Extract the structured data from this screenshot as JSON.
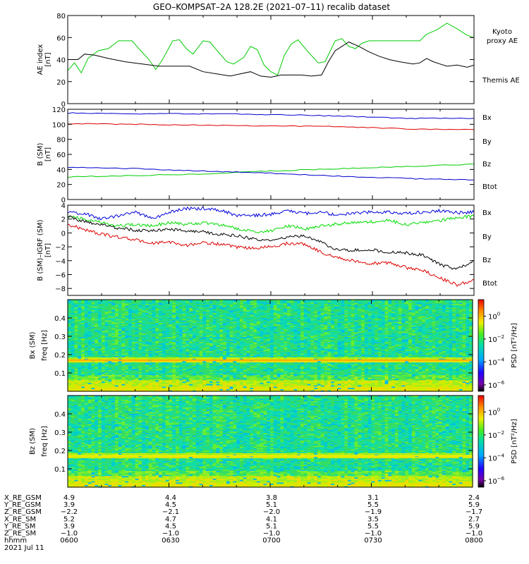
{
  "title": "GEO–KOMPSAT–2A 128.2E (2021–07–11) recalib dataset",
  "chart_data": [
    {
      "type": "line",
      "panel": "ae",
      "ylabel": [
        "AE index",
        "[nT]"
      ],
      "ylim": [
        0,
        80
      ],
      "yticks": [
        0,
        20,
        40,
        60,
        80
      ],
      "xlim": [
        0,
        120
      ],
      "series": [
        {
          "name": "Kyoto proxy AE",
          "label_lines": [
            "Kyoto",
            "proxy AE"
          ],
          "color": "#00cc00",
          "points": [
            [
              0,
              30
            ],
            [
              2,
              37
            ],
            [
              4,
              28
            ],
            [
              6,
              41
            ],
            [
              9,
              48
            ],
            [
              12,
              50
            ],
            [
              15,
              57
            ],
            [
              19,
              57
            ],
            [
              21,
              50
            ],
            [
              24,
              40
            ],
            [
              26,
              31
            ],
            [
              28,
              40
            ],
            [
              31,
              57
            ],
            [
              33,
              58
            ],
            [
              35,
              50
            ],
            [
              37,
              45
            ],
            [
              40,
              57
            ],
            [
              42,
              56
            ],
            [
              45,
              45
            ],
            [
              47,
              38
            ],
            [
              49,
              36
            ],
            [
              52,
              42
            ],
            [
              54,
              52
            ],
            [
              56,
              49
            ],
            [
              58,
              35
            ],
            [
              60,
              29
            ],
            [
              62,
              26
            ],
            [
              64,
              44
            ],
            [
              66,
              54
            ],
            [
              68,
              58
            ],
            [
              71,
              47
            ],
            [
              74,
              37
            ],
            [
              76,
              38
            ],
            [
              79,
              57
            ],
            [
              81,
              59
            ],
            [
              83,
              52
            ],
            [
              85,
              50
            ],
            [
              87,
              55
            ],
            [
              89,
              57
            ],
            [
              92,
              57
            ],
            [
              94,
              57
            ],
            [
              100,
              57
            ],
            [
              104,
              57
            ],
            [
              106,
              63
            ],
            [
              109,
              67
            ],
            [
              112,
              73
            ],
            [
              115,
              68
            ],
            [
              118,
              62
            ],
            [
              120,
              60
            ]
          ]
        },
        {
          "name": "Themis AE",
          "label_lines": [
            "Themis AE"
          ],
          "color": "#000000",
          "points": [
            [
              0,
              40
            ],
            [
              3,
              40
            ],
            [
              5,
              45
            ],
            [
              8,
              44
            ],
            [
              12,
              41
            ],
            [
              17,
              38
            ],
            [
              22,
              36
            ],
            [
              27,
              34
            ],
            [
              32,
              34
            ],
            [
              36,
              34
            ],
            [
              40,
              29
            ],
            [
              44,
              27
            ],
            [
              48,
              25
            ],
            [
              51,
              27
            ],
            [
              54,
              29
            ],
            [
              57,
              25
            ],
            [
              60,
              24
            ],
            [
              63,
              26
            ],
            [
              66,
              26
            ],
            [
              69,
              26
            ],
            [
              72,
              25
            ],
            [
              75,
              26
            ],
            [
              77,
              38
            ],
            [
              79,
              48
            ],
            [
              81,
              52
            ],
            [
              83,
              56
            ],
            [
              86,
              52
            ],
            [
              89,
              47
            ],
            [
              92,
              43
            ],
            [
              95,
              40
            ],
            [
              98,
              38
            ],
            [
              102,
              36
            ],
            [
              104,
              37
            ],
            [
              106,
              41
            ],
            [
              108,
              38
            ],
            [
              110,
              36
            ],
            [
              112,
              34
            ],
            [
              115,
              35
            ],
            [
              118,
              33
            ],
            [
              120,
              35
            ]
          ]
        }
      ]
    },
    {
      "type": "line",
      "panel": "bsm",
      "ylabel": [
        "B (SM)",
        "[nT]"
      ],
      "ylim": [
        0,
        120
      ],
      "yticks": [
        0,
        20,
        40,
        60,
        80,
        100,
        120
      ],
      "xlim": [
        0,
        120
      ],
      "series": [
        {
          "name": "Bx",
          "color": "#0000cc",
          "points": [
            [
              0,
              115
            ],
            [
              20,
              114
            ],
            [
              40,
              114
            ],
            [
              60,
              113
            ],
            [
              80,
              111
            ],
            [
              100,
              108
            ],
            [
              120,
              108
            ]
          ]
        },
        {
          "name": "By",
          "color": "#00cc00",
          "points": [
            [
              0,
              30
            ],
            [
              20,
              32
            ],
            [
              40,
              34
            ],
            [
              60,
              38
            ],
            [
              80,
              41
            ],
            [
              100,
              44
            ],
            [
              120,
              47
            ]
          ]
        },
        {
          "name": "Bz",
          "color": "#dd0000",
          "points": [
            [
              0,
              101
            ],
            [
              20,
              100
            ],
            [
              40,
              99
            ],
            [
              60,
              98
            ],
            [
              80,
              97
            ],
            [
              100,
              94
            ],
            [
              120,
              93
            ]
          ]
        },
        {
          "name": "Btot",
          "color": "#0000cc",
          "points": [
            [
              0,
              43
            ],
            [
              20,
              41
            ],
            [
              40,
              38
            ],
            [
              60,
              35
            ],
            [
              80,
              31
            ],
            [
              100,
              28
            ],
            [
              120,
              26
            ]
          ]
        }
      ]
    },
    {
      "type": "line",
      "panel": "bigrf",
      "ylabel": [
        "B (SM)–IGRF (SM)",
        "[nT]"
      ],
      "ylim": [
        -9,
        4
      ],
      "yticks": [
        -8,
        -6,
        -4,
        -2,
        0,
        2,
        4
      ],
      "xlim": [
        0,
        120
      ],
      "series": [
        {
          "name": "Bx",
          "color": "#0000dd",
          "points": [
            [
              0,
              2.9
            ],
            [
              5,
              2.8
            ],
            [
              10,
              2.0
            ],
            [
              15,
              2.5
            ],
            [
              20,
              3.0
            ],
            [
              25,
              2.0
            ],
            [
              30,
              3.0
            ],
            [
              35,
              3.5
            ],
            [
              40,
              3.5
            ],
            [
              45,
              3.3
            ],
            [
              50,
              2.5
            ],
            [
              55,
              2.5
            ],
            [
              60,
              2.7
            ],
            [
              65,
              3.2
            ],
            [
              70,
              2.8
            ],
            [
              75,
              3.0
            ],
            [
              80,
              2.5
            ],
            [
              85,
              2.9
            ],
            [
              90,
              3.0
            ],
            [
              95,
              3.0
            ],
            [
              100,
              2.8
            ],
            [
              105,
              3.0
            ],
            [
              110,
              3.2
            ],
            [
              115,
              2.9
            ],
            [
              120,
              3.0
            ]
          ]
        },
        {
          "name": "By",
          "color": "#00dd00",
          "points": [
            [
              0,
              2.5
            ],
            [
              5,
              2.0
            ],
            [
              10,
              1.5
            ],
            [
              15,
              1.0
            ],
            [
              20,
              1.2
            ],
            [
              25,
              1.0
            ],
            [
              30,
              1.5
            ],
            [
              35,
              1.2
            ],
            [
              40,
              1.4
            ],
            [
              45,
              1.2
            ],
            [
              50,
              0.6
            ],
            [
              55,
              0.2
            ],
            [
              60,
              0.3
            ],
            [
              65,
              1.0
            ],
            [
              70,
              0.6
            ],
            [
              75,
              1.0
            ],
            [
              80,
              1.3
            ],
            [
              85,
              1.5
            ],
            [
              90,
              1.6
            ],
            [
              95,
              1.8
            ],
            [
              100,
              1.2
            ],
            [
              105,
              1.5
            ],
            [
              110,
              1.8
            ],
            [
              115,
              2.2
            ],
            [
              120,
              2.4
            ]
          ]
        },
        {
          "name": "Bz",
          "color": "#dd0000",
          "points": [
            [
              0,
              1.2
            ],
            [
              5,
              0.5
            ],
            [
              10,
              -0.2
            ],
            [
              15,
              -0.6
            ],
            [
              20,
              -1.0
            ],
            [
              25,
              -1.5
            ],
            [
              30,
              -1.3
            ],
            [
              35,
              -1.8
            ],
            [
              40,
              -1.4
            ],
            [
              45,
              -1.6
            ],
            [
              50,
              -2.1
            ],
            [
              55,
              -2.2
            ],
            [
              60,
              -2.0
            ],
            [
              65,
              -1.5
            ],
            [
              70,
              -1.6
            ],
            [
              75,
              -2.8
            ],
            [
              80,
              -3.6
            ],
            [
              85,
              -4.1
            ],
            [
              90,
              -4.4
            ],
            [
              95,
              -4.3
            ],
            [
              100,
              -5.0
            ],
            [
              105,
              -5.4
            ],
            [
              110,
              -6.5
            ],
            [
              115,
              -7.5
            ],
            [
              120,
              -6.8
            ]
          ]
        },
        {
          "name": "Btot",
          "color": "#000000",
          "points": [
            [
              0,
              2.4
            ],
            [
              5,
              1.6
            ],
            [
              10,
              1.2
            ],
            [
              15,
              0.7
            ],
            [
              20,
              0.4
            ],
            [
              25,
              0.3
            ],
            [
              30,
              0.6
            ],
            [
              35,
              0.2
            ],
            [
              40,
              0.2
            ],
            [
              45,
              -0.2
            ],
            [
              50,
              -0.4
            ],
            [
              55,
              -0.9
            ],
            [
              60,
              -1.1
            ],
            [
              65,
              -0.6
            ],
            [
              70,
              -0.4
            ],
            [
              75,
              -1.4
            ],
            [
              80,
              -2.5
            ],
            [
              85,
              -2.5
            ],
            [
              90,
              -2.4
            ],
            [
              95,
              -2.8
            ],
            [
              100,
              -2.9
            ],
            [
              105,
              -3.2
            ],
            [
              110,
              -4.6
            ],
            [
              115,
              -5.2
            ],
            [
              120,
              -4.0
            ]
          ]
        }
      ]
    },
    {
      "type": "heatmap",
      "panel": "spec_bx",
      "ylabel": [
        "Bx (SM)",
        "freq [Hz]"
      ],
      "ylim": [
        0,
        0.5
      ],
      "yticks": [
        0.1,
        0.2,
        0.3,
        0.4
      ],
      "colorbar": {
        "label": "PSD [nT²/Hz]",
        "ticks": [
          {
            "base": "10",
            "exp": "0"
          },
          {
            "base": "10",
            "exp": "−2"
          },
          {
            "base": "10",
            "exp": "−4"
          },
          {
            "base": "10",
            "exp": "−6"
          }
        ]
      }
    },
    {
      "type": "heatmap",
      "panel": "spec_bz",
      "ylabel": [
        "Bz (SM)",
        "freq [Hz]"
      ],
      "ylim": [
        0,
        0.5
      ],
      "yticks": [
        0.1,
        0.2,
        0.3,
        0.4
      ],
      "colorbar": {
        "label": "PSD [nT²/Hz]",
        "ticks": [
          {
            "base": "10",
            "exp": "0"
          },
          {
            "base": "10",
            "exp": "−2"
          },
          {
            "base": "10",
            "exp": "−4"
          },
          {
            "base": "10",
            "exp": "−6"
          }
        ]
      }
    }
  ],
  "ephemeris": {
    "rows": [
      {
        "label": "X_RE_GSM",
        "values": [
          "4.9",
          "4.4",
          "3.8",
          "3.1",
          "2.4"
        ]
      },
      {
        "label": "Y_RE_GSM",
        "values": [
          "3.9",
          "4.5",
          "5.1",
          "5.5",
          "5.9"
        ]
      },
      {
        "label": "Z_RE_GSM",
        "values": [
          "−2.2",
          "−2.1",
          "−2.0",
          "−1.9",
          "−1.7"
        ]
      },
      {
        "label": "X_RE_SM",
        "values": [
          "5.2",
          "4.7",
          "4.1",
          "3.5",
          "2.7"
        ]
      },
      {
        "label": "Y_RE_SM",
        "values": [
          "3.9",
          "4.5",
          "5.1",
          "5.5",
          "5.9"
        ]
      },
      {
        "label": "Z_RE_SM",
        "values": [
          "−1.0",
          "−1.0",
          "−1.0",
          "−1.0",
          "−1.0"
        ]
      },
      {
        "label": "hhmm",
        "values": [
          "0600",
          "0630",
          "0700",
          "0730",
          "0800"
        ]
      }
    ],
    "date": "2021 Jul 11"
  }
}
